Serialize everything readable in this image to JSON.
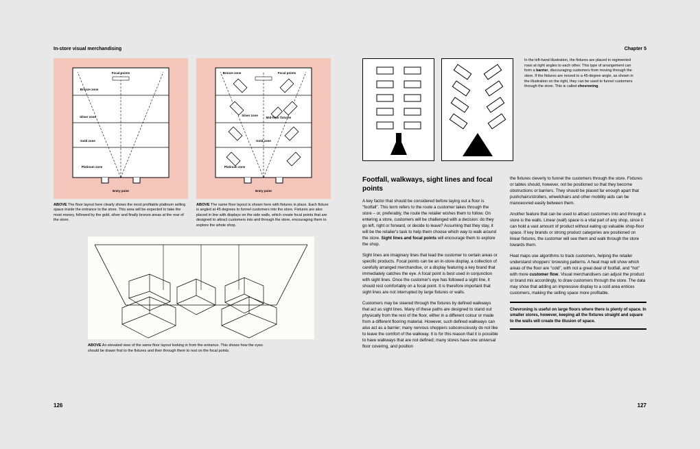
{
  "colors": {
    "page_bg": "#e8e8e8",
    "diagram_bg": "#f4c5bb",
    "line": "#000000",
    "white": "#ffffff"
  },
  "left": {
    "running_head": "In-store visual merchandising",
    "page_num": "126",
    "diag1": {
      "labels": {
        "focal": "Focal points",
        "bronze": "Bronze zone",
        "silver": "Silver zone",
        "gold": "Gold zone",
        "platinum": "Platinum zone",
        "entry": "Entry point"
      },
      "caption_label": "ABOVE",
      "caption": "The floor layout here clearly shows the most profitable platinum selling space inside the entrance to the store. This area will be expected to take the most money, followed by the gold, silver and finally bronze areas at the rear of the store."
    },
    "diag2": {
      "labels": {
        "bronze": "Bronze zone",
        "focal": "Focal points",
        "silver": "Silver zone",
        "midfloor": "Mid-floor fixtures",
        "gold": "Gold zone",
        "platinum": "Platinum zone",
        "entry": "Entry point"
      },
      "caption_label": "ABOVE",
      "caption": "The same floor layout is shown here with fixtures in place. Each fixture is angled at 45 degrees to funnel customers into the store. Fixtures are also placed in line with displays on the side walls, which create focal points that are designed to attract customers into and through the store, encouraging them to explore the whole shop."
    },
    "perspective": {
      "caption_label": "ABOVE",
      "caption": "An elevated view of the same floor layout looking in from the entrance. This shows how the eyes should be drawn first to the fixtures and then through them to rest on the focal points."
    }
  },
  "right": {
    "running_head": "Chapter 5",
    "page_num": "127",
    "top_caption": "In the left-hand illustration, the fixtures are placed in regimented rows at right angles to each other. This type of arrangement can form a barrier, discouraging customers from moving through the store. If the fixtures are moved to a 45-degree angle, as shown in the illustration on the right, they can be used to funnel customers through the store. This is called chevroning.",
    "top_caption_bold1": "barrier",
    "top_caption_bold2": "chevroning",
    "heading": "Footfall, walkways, sight lines and focal points",
    "col1_p1": "A key factor that should be considered before laying out a floor is \"footfall\". This term refers to the route a customer takes through the store – or, preferably, the route the retailer wishes them to follow. On entering a store, customers will be challenged with a decision: do they go left, right or forward, or decide to leave? Assuming that they stay, it will be the retailer's task to help them choose which way to walk around the store. Sight lines and focal points will encourage them to explore the shop.",
    "col1_p1_bold": "Sight lines and focal points",
    "col1_p2": "Sight lines are imaginary lines that lead the customer to certain areas or specific products. Focal points can be an in-store display, a collection of carefully arranged merchandise, or a display featuring a key brand that immediately catches the eye. A focal point is best used in conjunction with sight lines. Once the customer's eye has followed a sight line, it should rest comfortably on a focal point. It is therefore important that sight lines are not interrupted by large fixtures or walls.",
    "col1_p3": "Customers may be steered through the fixtures by defined walkways that act as sight lines. Many of these paths are designed to stand out physically from the rest of the floor, either in a different colour or made from a different flooring material. However, such defined walkways can also act as a barrier; many nervous shoppers subconsciously do not like to leave the comfort of the walkway. It is for this reason that it is possible to have walkways that are not defined; many stores have one universal floor covering, and position",
    "col2_p1": "the fixtures cleverly to funnel the customers through the store. Fixtures or tables should, however, not be positioned so that they become obstructions or barriers. They should be placed far enough apart that pushchairs/strollers, wheelchairs and other mobility aids can be manoeuvred easily between them.",
    "col2_p2": "Another feature that can be used to attract customers into and through a store is the walls. Linear (wall) space is a vital part of any shop, since it can hold a vast amount of product without eating up valuable shop-floor space. If key brands or strong product categories are positioned on linear fixtures, the customer will see them and walk through the store towards them.",
    "col2_p3": "Heat maps use algorithms to track customers, helping the retailer understand shoppers' browsing patterns. A heat map will show which areas of the floor are \"cold\", with not a great deal of footfall, and \"hot\" with more customer flow. Visual merchandisers can adjust the product or brand mix accordingly, to draw customers through the store. The data may show that adding an impressive display to a cold area entices customers, making the selling space more profitable.",
    "col2_p3_bold": "customer flow",
    "callout": "Chevroning is useful on large floors where there is plenty of space. In smaller stores, however, keeping all the fixtures straight and square to the walls will create the illusion of space."
  }
}
